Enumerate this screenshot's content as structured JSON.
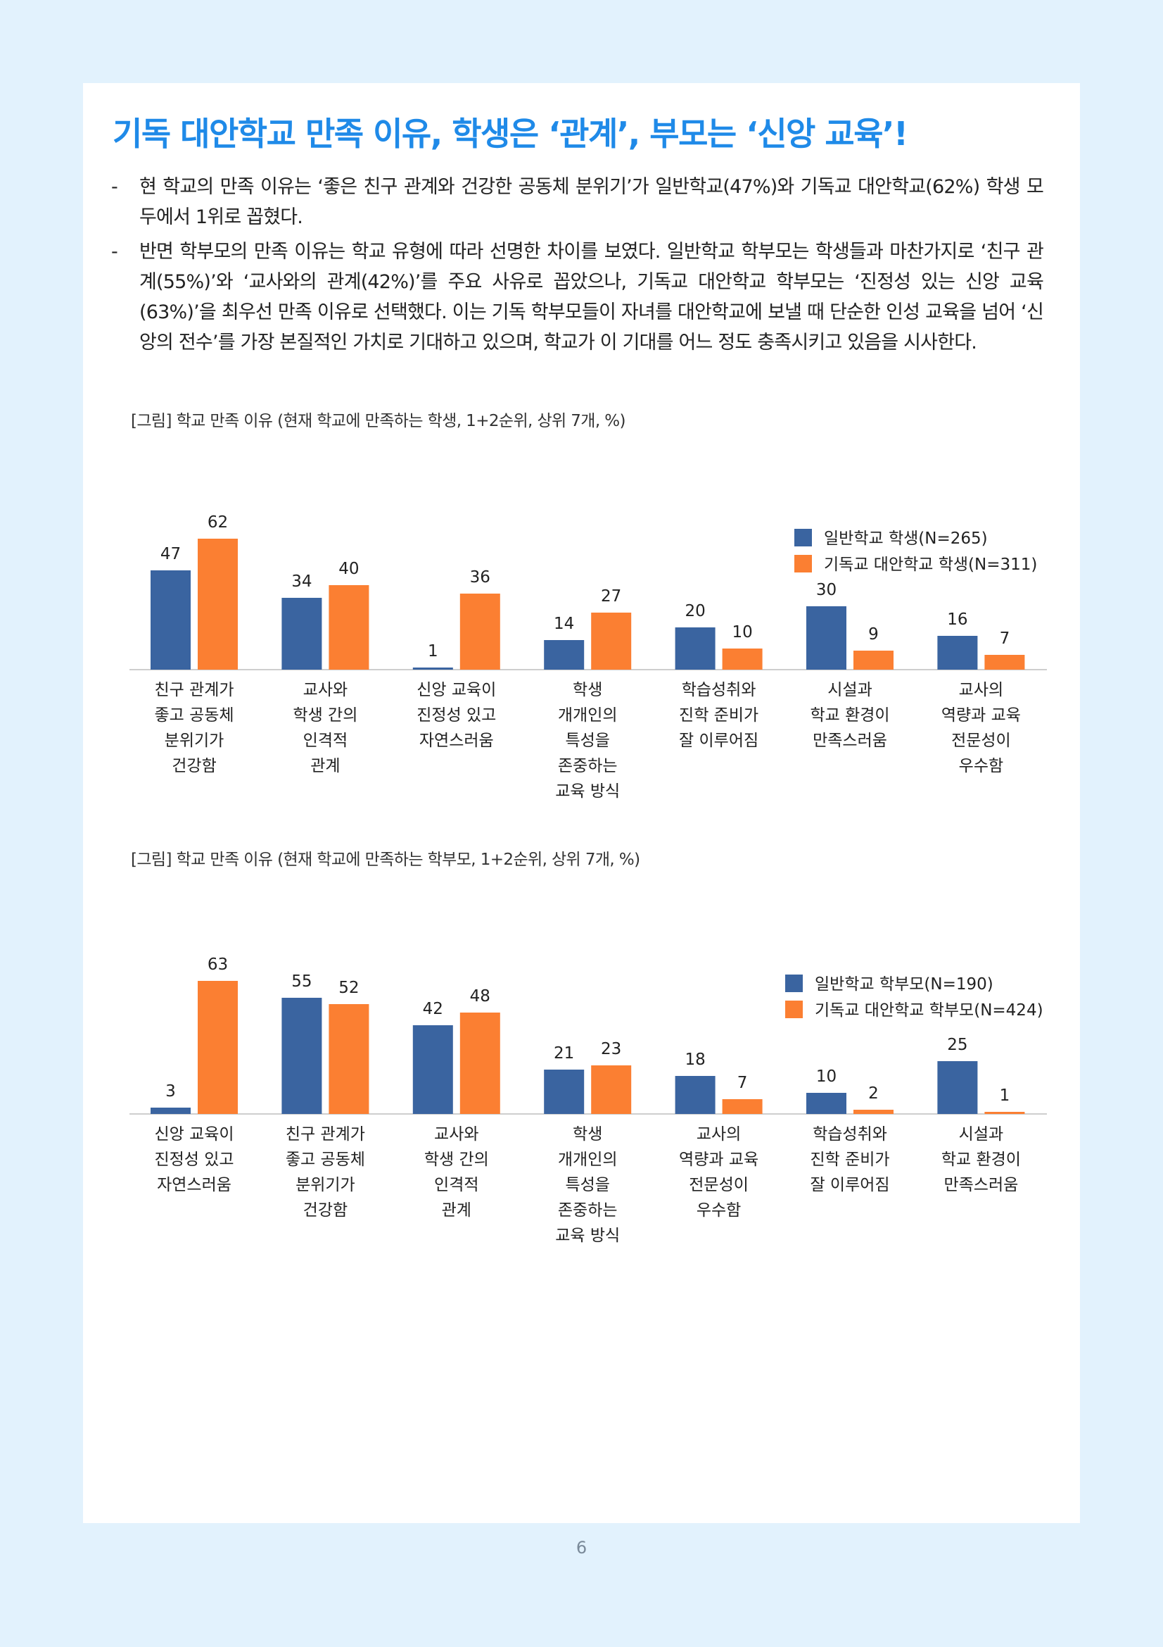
{
  "title": "기독 대안학교 만족 이유, 학생은 ‘관계’, 부모는 ‘신앙 교육’!",
  "bullets": [
    {
      "dash": "-",
      "text": "현 학교의 만족 이유는 ‘좋은 친구 관계와 건강한 공동체 분위기’가 일반학교(47%)와 기독교 대안학교(62%) 학생 모두에서 1위로 꼽혔다."
    },
    {
      "dash": "-",
      "text": "반면 학부모의 만족 이유는 학교 유형에 따라 선명한 차이를 보였다. 일반학교 학부모는 학생들과 마찬가지로 ‘친구 관계(55%)’와 ‘교사와의 관계(42%)’를 주요 사유로 꼽았으나, 기독교 대안학교 학부모는 ‘진정성 있는 신앙 교육(63%)’을 최우선 만족 이유로 선택했다. 이는 기독 학부모들이 자녀를 대안학교에 보낼 때 단순한 인성 교육을 넘어 ‘신앙의 전수’를 가장 본질적인 가치로 기대하고 있으며, 학교가 이 기대를 어느 정도 충족시키고 있음을 시사한다."
    }
  ],
  "captions": [
    "[그림] 학교 만족 이유 (현재 학교에 만족하는 학생, 1+2순위, 상위 7개, %)",
    "[그림] 학교 만족 이유 (현재 학교에 만족하는 학부모, 1+2순위, 상위 7개, %)"
  ],
  "page_number": "6",
  "colors": {
    "blue": "#3a64a0",
    "orange": "#fb7f32",
    "title": "#1f8ae8"
  },
  "chart_data": [
    {
      "type": "bar",
      "categories": [
        [
          "친구 관계가",
          "좋고 공동체",
          "분위기가",
          "건강함"
        ],
        [
          "교사와",
          "학생 간의",
          "인격적",
          "관계"
        ],
        [
          "신앙 교육이",
          "진정성 있고",
          "자연스러움"
        ],
        [
          "학생",
          "개개인의",
          "특성을",
          "존중하는",
          "교육 방식"
        ],
        [
          "학습성취와",
          "진학 준비가",
          "잘 이루어짐"
        ],
        [
          "시설과",
          "학교 환경이",
          "만족스러움"
        ],
        [
          "교사의",
          "역량과 교육",
          "전문성이",
          "우수함"
        ]
      ],
      "series": [
        {
          "name": "일반학교 학생(N=265)",
          "color": "#3a64a0",
          "values": [
            47,
            34,
            1,
            14,
            20,
            30,
            16
          ]
        },
        {
          "name": "기독교 대안학교 학생(N=311)",
          "color": "#fb7f32",
          "values": [
            62,
            40,
            36,
            27,
            10,
            9,
            7
          ]
        }
      ],
      "ylim": [
        0,
        70
      ],
      "legend": "top-right",
      "grid": false
    },
    {
      "type": "bar",
      "categories": [
        [
          "신앙 교육이",
          "진정성 있고",
          "자연스러움"
        ],
        [
          "친구 관계가",
          "좋고 공동체",
          "분위기가",
          "건강함"
        ],
        [
          "교사와",
          "학생 간의",
          "인격적",
          "관계"
        ],
        [
          "학생",
          "개개인의",
          "특성을",
          "존중하는",
          "교육 방식"
        ],
        [
          "교사의",
          "역량과 교육",
          "전문성이",
          "우수함"
        ],
        [
          "학습성취와",
          "진학 준비가",
          "잘 이루어짐"
        ],
        [
          "시설과",
          "학교 환경이",
          "만족스러움"
        ]
      ],
      "series": [
        {
          "name": "일반학교 학부모(N=190)",
          "color": "#3a64a0",
          "values": [
            3,
            55,
            42,
            21,
            18,
            10,
            25
          ]
        },
        {
          "name": "기독교 대안학교 학부모(N=424)",
          "color": "#fb7f32",
          "values": [
            63,
            52,
            48,
            23,
            7,
            2,
            1
          ]
        }
      ],
      "ylim": [
        0,
        70
      ],
      "legend": "top-right",
      "grid": false
    }
  ]
}
